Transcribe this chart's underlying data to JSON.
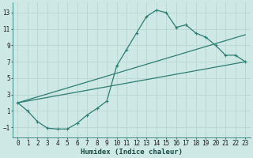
{
  "xlabel": "Humidex (Indice chaleur)",
  "bg_color": "#cde8e5",
  "grid_color": "#b8d5d2",
  "line_color": "#2e7d72",
  "xlim": [
    -0.5,
    23.5
  ],
  "ylim": [
    -2.2,
    14.2
  ],
  "yticks": [
    -1,
    1,
    3,
    5,
    7,
    9,
    11,
    13
  ],
  "xticks": [
    0,
    1,
    2,
    3,
    4,
    5,
    6,
    7,
    8,
    9,
    10,
    11,
    12,
    13,
    14,
    15,
    16,
    17,
    18,
    19,
    20,
    21,
    22,
    23
  ],
  "curve_x": [
    0,
    1,
    2,
    3,
    4,
    5,
    6,
    7,
    8,
    9,
    10,
    11,
    12,
    13,
    14,
    15,
    16,
    17,
    18,
    19,
    20,
    21,
    22,
    23
  ],
  "curve_y": [
    2.0,
    1.0,
    -0.3,
    -1.1,
    -1.2,
    -1.2,
    -0.5,
    0.5,
    1.3,
    2.2,
    6.5,
    8.5,
    10.5,
    12.5,
    13.3,
    13.0,
    11.2,
    11.5,
    10.5,
    10.0,
    9.0,
    7.8,
    7.8,
    7.0
  ],
  "line1_x": [
    0,
    23
  ],
  "line1_y": [
    2.0,
    10.3
  ],
  "line2_x": [
    0,
    23
  ],
  "line2_y": [
    2.0,
    7.0
  ]
}
